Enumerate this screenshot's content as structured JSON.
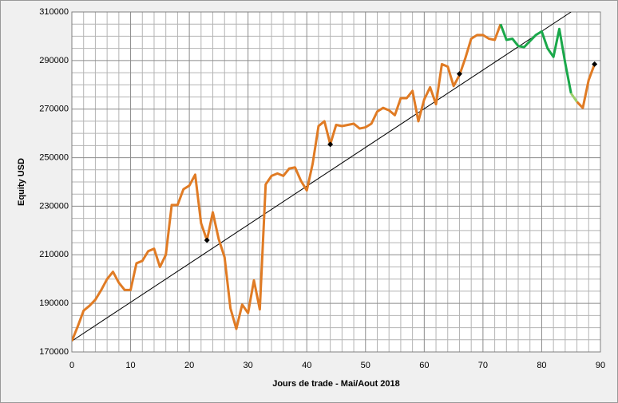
{
  "chart_data": {
    "type": "line",
    "xlabel": "Jours de trade - Mai/Aout 2018",
    "ylabel": "Equity USD",
    "x": [
      0,
      1,
      2,
      3,
      4,
      5,
      6,
      7,
      8,
      9,
      10,
      11,
      12,
      13,
      14,
      15,
      16,
      17,
      18,
      19,
      20,
      21,
      22,
      23,
      24,
      25,
      26,
      27,
      28,
      29,
      30,
      31,
      32,
      33,
      34,
      35,
      36,
      37,
      38,
      39,
      40,
      41,
      42,
      43,
      44,
      45,
      46,
      47,
      48,
      49,
      50,
      51,
      52,
      53,
      54,
      55,
      56,
      57,
      58,
      59,
      60,
      61,
      62,
      63,
      64,
      65,
      66,
      67,
      68,
      69,
      70,
      71,
      72,
      73,
      74,
      75,
      76,
      77,
      78,
      79,
      80,
      81,
      82,
      83,
      84,
      85,
      86,
      87,
      88,
      89
    ],
    "series": [
      {
        "color": "#e07b24",
        "values": [
          174500,
          180500,
          187000,
          189000,
          191500,
          195500,
          200000,
          203000,
          198500,
          195500,
          195500,
          206500,
          207500,
          211500,
          212500,
          205000,
          210000,
          230500,
          230500,
          237000,
          238500,
          243000,
          223000,
          216000,
          227500,
          216500,
          209000,
          188000,
          179500,
          189500,
          186000,
          199500,
          187500,
          239000,
          242500,
          243500,
          242500,
          245500,
          246000,
          240500,
          236500,
          247500,
          263000,
          265000,
          255500,
          263500,
          263000,
          263500,
          264000,
          262000,
          262500,
          264000,
          269000,
          270500,
          269500,
          267500,
          274500,
          274500,
          277500,
          265000,
          274000,
          279000,
          272000,
          288500,
          287500,
          279500,
          284000,
          291000,
          299000,
          300500,
          300500,
          299000,
          298500,
          305000,
          null,
          null,
          null,
          null,
          null,
          null,
          null,
          null,
          null,
          null,
          null,
          null,
          273000,
          270500,
          282000,
          288500
        ]
      },
      {
        "color": "#1aa84a",
        "values": [
          null,
          null,
          null,
          null,
          null,
          null,
          null,
          null,
          null,
          null,
          null,
          null,
          null,
          null,
          null,
          null,
          null,
          null,
          null,
          null,
          null,
          null,
          null,
          null,
          null,
          null,
          null,
          null,
          null,
          null,
          null,
          null,
          null,
          null,
          null,
          null,
          null,
          null,
          null,
          null,
          null,
          null,
          null,
          null,
          null,
          null,
          null,
          null,
          null,
          null,
          null,
          null,
          null,
          null,
          null,
          null,
          null,
          null,
          null,
          null,
          null,
          null,
          null,
          null,
          null,
          null,
          null,
          null,
          null,
          null,
          null,
          null,
          null,
          305000,
          298500,
          299000,
          296000,
          295500,
          298000,
          300500,
          302000,
          295000,
          291500,
          303000,
          289000,
          276500,
          null,
          null,
          null,
          null
        ]
      },
      {
        "color": "#9ccf6a",
        "values": [
          null,
          null,
          null,
          null,
          null,
          null,
          null,
          null,
          null,
          null,
          null,
          null,
          null,
          null,
          null,
          null,
          null,
          null,
          null,
          null,
          null,
          null,
          null,
          null,
          null,
          null,
          null,
          null,
          null,
          null,
          null,
          null,
          null,
          null,
          null,
          null,
          null,
          null,
          null,
          null,
          null,
          null,
          null,
          null,
          null,
          null,
          null,
          null,
          null,
          null,
          null,
          null,
          null,
          null,
          null,
          null,
          null,
          null,
          null,
          null,
          null,
          null,
          null,
          null,
          null,
          null,
          null,
          null,
          null,
          null,
          null,
          null,
          null,
          null,
          null,
          null,
          null,
          null,
          null,
          null,
          null,
          null,
          null,
          null,
          null,
          276500,
          273000,
          null,
          null,
          null
        ]
      }
    ],
    "markers": {
      "color": "#000000",
      "x": [
        23,
        44,
        66,
        89
      ],
      "values": [
        216000,
        255500,
        284500,
        288500
      ]
    },
    "trend": {
      "color": "#000000",
      "x": [
        0,
        85
      ],
      "values": [
        174500,
        310000
      ]
    },
    "xlim": [
      0,
      90
    ],
    "ylim": [
      170000,
      310000
    ],
    "xticks": [
      0,
      10,
      20,
      30,
      40,
      50,
      60,
      70,
      80,
      90
    ],
    "yticks": [
      170000,
      190000,
      210000,
      230000,
      250000,
      270000,
      290000,
      310000
    ],
    "grid": true
  }
}
